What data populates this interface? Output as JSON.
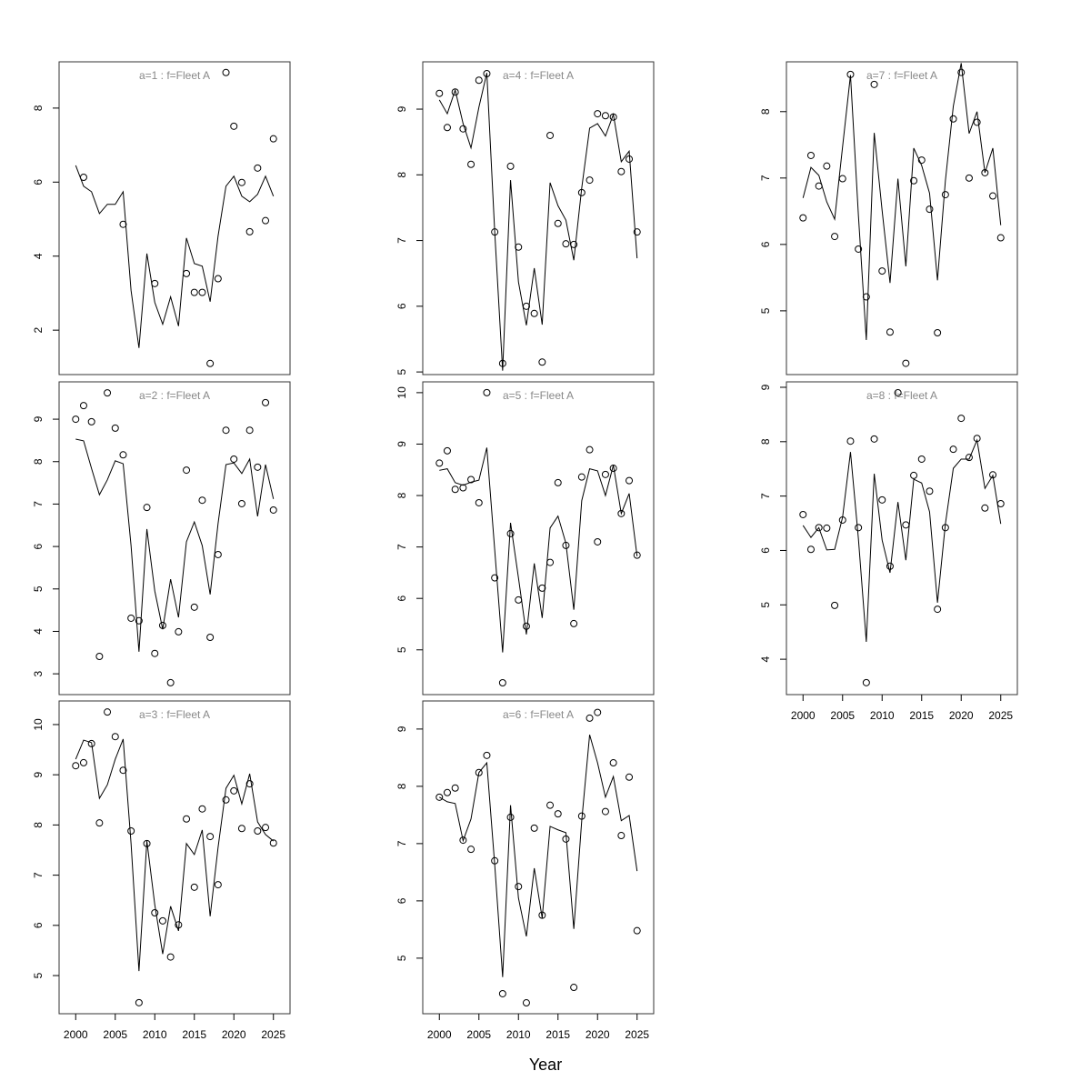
{
  "xlabel": "Year",
  "chart_data": [
    {
      "type": "line",
      "title": "a=1  :  f=Fleet A",
      "x": [
        2000,
        2001,
        2002,
        2003,
        2004,
        2005,
        2006,
        2007,
        2008,
        2009,
        2010,
        2011,
        2012,
        2013,
        2014,
        2015,
        2016,
        2017,
        2018,
        2019,
        2020,
        2021,
        2022,
        2023,
        2024,
        2025
      ],
      "series": [
        {
          "style": "points",
          "color": "#000000",
          "values": [
            null,
            6.13,
            null,
            null,
            null,
            null,
            4.86,
            null,
            null,
            null,
            3.26,
            null,
            null,
            null,
            3.53,
            3.02,
            3.02,
            1.1,
            3.39,
            8.96,
            7.51,
            5.99,
            4.66,
            6.38,
            4.96,
            7.17
          ]
        },
        {
          "style": "line",
          "color": "#000000",
          "values": [
            6.45,
            5.89,
            5.74,
            5.15,
            5.4,
            5.4,
            5.74,
            3.07,
            1.52,
            4.07,
            2.75,
            2.16,
            2.9,
            2.11,
            4.49,
            3.8,
            3.73,
            2.77,
            4.54,
            5.89,
            6.16,
            5.62,
            5.47,
            5.67,
            6.16,
            5.62
          ]
        }
      ],
      "xlim": [
        1997.9,
        2027.1
      ],
      "ylim": [
        0.8,
        9.25
      ],
      "yticks": [
        2,
        4,
        6,
        8
      ]
    },
    {
      "type": "line",
      "title": "a=2  :  f=Fleet A",
      "x": [
        2000,
        2001,
        2002,
        2003,
        2004,
        2005,
        2006,
        2007,
        2008,
        2009,
        2010,
        2011,
        2012,
        2013,
        2014,
        2015,
        2016,
        2017,
        2018,
        2019,
        2020,
        2021,
        2022,
        2023,
        2024,
        2025
      ],
      "series": [
        {
          "style": "points",
          "color": "#000000",
          "values": [
            9.0,
            9.32,
            8.94,
            3.41,
            9.62,
            8.79,
            8.16,
            4.31,
            4.25,
            6.92,
            3.48,
            4.14,
            2.79,
            3.99,
            7.8,
            4.57,
            7.09,
            3.86,
            5.81,
            8.74,
            8.06,
            7.01,
            8.74,
            7.87,
            9.39,
            6.86
          ]
        },
        {
          "style": "line",
          "color": "#000000",
          "values": [
            8.53,
            8.49,
            7.84,
            7.22,
            7.57,
            8.02,
            7.95,
            6.02,
            3.52,
            6.41,
            4.95,
            4.05,
            5.23,
            4.33,
            6.11,
            6.58,
            6.02,
            4.87,
            6.54,
            7.93,
            7.97,
            7.72,
            8.06,
            6.71,
            7.93,
            7.12
          ]
        }
      ],
      "xlim": [
        1997.9,
        2027.1
      ],
      "ylim": [
        2.51,
        9.88
      ],
      "yticks": [
        3,
        4,
        5,
        6,
        7,
        8,
        9
      ]
    },
    {
      "type": "line",
      "title": "a=3  :  f=Fleet A",
      "x": [
        2000,
        2001,
        2002,
        2003,
        2004,
        2005,
        2006,
        2007,
        2008,
        2009,
        2010,
        2011,
        2012,
        2013,
        2014,
        2015,
        2016,
        2017,
        2018,
        2019,
        2020,
        2021,
        2022,
        2023,
        2024,
        2025
      ],
      "series": [
        {
          "style": "points",
          "color": "#000000",
          "values": [
            9.18,
            9.24,
            9.62,
            8.04,
            10.25,
            9.76,
            9.09,
            7.88,
            4.46,
            7.63,
            6.25,
            6.09,
            5.37,
            6.01,
            8.12,
            6.76,
            8.32,
            7.77,
            6.81,
            8.5,
            8.68,
            7.93,
            8.82,
            7.88,
            7.95,
            7.64
          ]
        },
        {
          "style": "line",
          "color": "#000000",
          "values": [
            9.31,
            9.69,
            9.64,
            8.53,
            8.8,
            9.31,
            9.71,
            7.63,
            5.09,
            7.68,
            6.41,
            5.43,
            6.38,
            5.89,
            7.63,
            7.41,
            7.9,
            6.18,
            7.55,
            8.73,
            8.99,
            8.42,
            9.02,
            8.06,
            7.81,
            7.68
          ]
        }
      ],
      "xlim": [
        1997.9,
        2027.1
      ],
      "ylim": [
        4.24,
        10.47
      ],
      "yticks": [
        5,
        6,
        7,
        8,
        9,
        10
      ],
      "xticks": [
        2000,
        2005,
        2010,
        2015,
        2020,
        2025
      ]
    },
    {
      "type": "line",
      "title": "a=4  :  f=Fleet A",
      "x": [
        2000,
        2001,
        2002,
        2003,
        2004,
        2005,
        2006,
        2007,
        2008,
        2009,
        2010,
        2011,
        2012,
        2013,
        2014,
        2015,
        2016,
        2017,
        2018,
        2019,
        2020,
        2021,
        2022,
        2023,
        2024,
        2025
      ],
      "series": [
        {
          "style": "points",
          "color": "#000000",
          "values": [
            9.24,
            8.72,
            9.26,
            8.7,
            8.16,
            9.44,
            9.54,
            7.13,
            5.13,
            8.13,
            6.9,
            6.0,
            5.89,
            5.15,
            8.6,
            7.26,
            6.95,
            6.94,
            7.73,
            7.92,
            8.93,
            8.9,
            8.88,
            8.05,
            8.24,
            7.13
          ]
        },
        {
          "style": "line",
          "color": "#000000",
          "values": [
            9.14,
            8.93,
            9.29,
            8.78,
            8.41,
            9.03,
            9.55,
            7.13,
            5.02,
            7.92,
            6.37,
            5.71,
            6.58,
            5.72,
            7.88,
            7.53,
            7.31,
            6.7,
            7.8,
            8.71,
            8.78,
            8.59,
            8.92,
            8.2,
            8.36,
            6.73
          ]
        }
      ],
      "xlim": [
        1997.9,
        2027.1
      ],
      "ylim": [
        4.96,
        9.72
      ],
      "yticks": [
        5,
        6,
        7,
        8,
        9
      ]
    },
    {
      "type": "line",
      "title": "a=5  :  f=Fleet A",
      "x": [
        2000,
        2001,
        2002,
        2003,
        2004,
        2005,
        2006,
        2007,
        2008,
        2009,
        2010,
        2011,
        2012,
        2013,
        2014,
        2015,
        2016,
        2017,
        2018,
        2019,
        2020,
        2021,
        2022,
        2023,
        2024,
        2025
      ],
      "series": [
        {
          "style": "points",
          "color": "#000000",
          "values": [
            8.63,
            8.87,
            8.12,
            8.15,
            8.31,
            7.86,
            10.0,
            6.4,
            4.36,
            7.26,
            5.97,
            5.46,
            null,
            6.2,
            6.7,
            8.25,
            7.03,
            5.51,
            8.36,
            8.89,
            7.1,
            8.41,
            8.53,
            7.65,
            8.29,
            6.84
          ]
        },
        {
          "style": "line",
          "color": "#000000",
          "values": [
            8.49,
            8.52,
            8.25,
            8.2,
            8.26,
            8.3,
            8.93,
            6.94,
            4.95,
            7.47,
            6.4,
            5.3,
            6.68,
            5.62,
            7.37,
            7.6,
            7.07,
            5.78,
            7.9,
            8.52,
            8.48,
            8.0,
            8.59,
            7.65,
            8.04,
            6.82
          ]
        }
      ],
      "xlim": [
        1997.9,
        2027.1
      ],
      "ylim": [
        4.13,
        10.21
      ],
      "yticks": [
        5,
        6,
        7,
        8,
        9,
        10
      ]
    },
    {
      "type": "line",
      "title": "a=6  :  f=Fleet A",
      "x": [
        2000,
        2001,
        2002,
        2003,
        2004,
        2005,
        2006,
        2007,
        2008,
        2009,
        2010,
        2011,
        2012,
        2013,
        2014,
        2015,
        2016,
        2017,
        2018,
        2019,
        2020,
        2021,
        2022,
        2023,
        2024,
        2025
      ],
      "series": [
        {
          "style": "points",
          "color": "#000000",
          "values": [
            7.81,
            7.89,
            7.97,
            7.06,
            6.9,
            8.24,
            8.54,
            6.7,
            4.38,
            7.46,
            6.25,
            4.22,
            7.27,
            5.75,
            7.67,
            7.52,
            7.08,
            4.49,
            7.48,
            9.19,
            9.29,
            7.56,
            8.41,
            7.14,
            8.16,
            5.48
          ]
        },
        {
          "style": "line",
          "color": "#000000",
          "values": [
            7.81,
            7.73,
            7.7,
            7.05,
            7.43,
            8.24,
            8.41,
            6.63,
            4.67,
            7.67,
            6.05,
            5.38,
            6.57,
            5.7,
            7.3,
            7.24,
            7.19,
            5.51,
            7.4,
            8.9,
            8.41,
            7.81,
            8.17,
            7.4,
            7.49,
            6.52
          ]
        }
      ],
      "xlim": [
        1997.9,
        2027.1
      ],
      "ylim": [
        4.03,
        9.49
      ],
      "yticks": [
        5,
        6,
        7,
        8,
        9
      ],
      "xticks": [
        2000,
        2005,
        2010,
        2015,
        2020,
        2025
      ]
    },
    {
      "type": "line",
      "title": "a=7  :  f=Fleet A",
      "x": [
        2000,
        2001,
        2002,
        2003,
        2004,
        2005,
        2006,
        2007,
        2008,
        2009,
        2010,
        2011,
        2012,
        2013,
        2014,
        2015,
        2016,
        2017,
        2018,
        2019,
        2020,
        2021,
        2022,
        2023,
        2024,
        2025
      ],
      "series": [
        {
          "style": "points",
          "color": "#000000",
          "values": [
            6.4,
            7.34,
            6.88,
            7.18,
            6.12,
            6.99,
            8.56,
            5.93,
            5.21,
            8.41,
            5.6,
            4.68,
            null,
            4.21,
            6.96,
            7.27,
            6.53,
            4.67,
            6.75,
            7.89,
            8.59,
            7.0,
            7.84,
            7.08,
            6.73,
            6.1
          ]
        },
        {
          "style": "line",
          "color": "#000000",
          "values": [
            6.7,
            7.16,
            7.04,
            6.64,
            6.38,
            7.47,
            8.55,
            6.44,
            4.56,
            7.68,
            6.51,
            5.42,
            6.99,
            5.67,
            7.45,
            7.19,
            6.77,
            5.46,
            6.96,
            8.08,
            8.73,
            7.67,
            8.0,
            7.08,
            7.45,
            6.29
          ]
        }
      ],
      "xlim": [
        1997.9,
        2027.1
      ],
      "ylim": [
        4.04,
        8.75
      ],
      "yticks": [
        5,
        6,
        7,
        8
      ]
    },
    {
      "type": "line",
      "title": "a=8  :  f=Fleet A",
      "x": [
        2000,
        2001,
        2002,
        2003,
        2004,
        2005,
        2006,
        2007,
        2008,
        2009,
        2010,
        2011,
        2012,
        2013,
        2014,
        2015,
        2016,
        2017,
        2018,
        2019,
        2020,
        2021,
        2022,
        2023,
        2024,
        2025
      ],
      "series": [
        {
          "style": "points",
          "color": "#000000",
          "values": [
            6.66,
            6.02,
            6.42,
            6.41,
            4.99,
            6.56,
            8.01,
            6.42,
            3.57,
            8.05,
            6.93,
            5.71,
            8.9,
            6.47,
            7.38,
            7.68,
            7.09,
            4.92,
            6.42,
            7.86,
            8.43,
            7.71,
            8.06,
            6.78,
            7.39,
            6.86
          ]
        },
        {
          "style": "line",
          "color": "#000000",
          "values": [
            6.46,
            6.24,
            6.42,
            6.01,
            6.02,
            6.61,
            7.81,
            6.22,
            4.32,
            7.41,
            6.19,
            5.59,
            6.89,
            5.82,
            7.31,
            7.24,
            6.71,
            5.04,
            6.49,
            7.51,
            7.68,
            7.68,
            8.03,
            7.14,
            7.38,
            6.49
          ]
        }
      ],
      "xlim": [
        1997.9,
        2027.1
      ],
      "ylim": [
        3.35,
        9.1
      ],
      "yticks": [
        4,
        5,
        6,
        7,
        8,
        9
      ],
      "xticks": [
        2000,
        2005,
        2010,
        2015,
        2020,
        2025
      ]
    }
  ]
}
